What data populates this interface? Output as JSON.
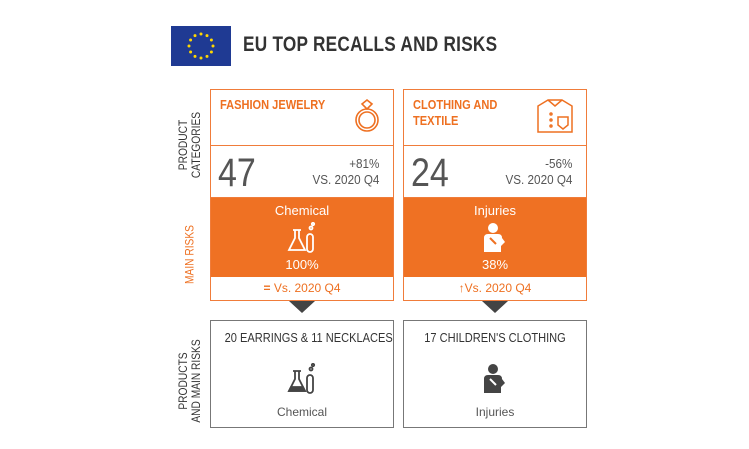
{
  "header": {
    "title": "EU TOP RECALLS AND RISKS",
    "flag_icon": "eu-flag"
  },
  "side_labels": {
    "product_categories": [
      "PRODUCT",
      "CATEGORIES"
    ],
    "main_risks": "MAIN RISKS",
    "products_main_risks": [
      "PRODUCTS",
      "AND MAIN RISKS"
    ]
  },
  "colors": {
    "accent": "#ef7123",
    "dark": "#444444"
  },
  "cards": [
    {
      "category": "FASHION JEWELRY",
      "icon": "ring-icon",
      "count": "47",
      "change": "+81%",
      "change_ref": "VS. 2020 Q4",
      "risk": "Chemical",
      "risk_icon": "chemical-flask-icon",
      "risk_pct": "100%",
      "trend_icon": "equal-icon",
      "trend_symbol": "=",
      "trend_text": "Vs. 2020 Q4",
      "products": "20 EARRINGS & 11 NECKLACES",
      "product_risk": "Chemical"
    },
    {
      "category": "CLOTHING AND TEXTILE",
      "icon": "shirt-icon",
      "count": "24",
      "change": "-56%",
      "change_ref": "VS. 2020 Q4",
      "risk": "Injuries",
      "risk_icon": "injured-person-icon",
      "risk_pct": "38%",
      "trend_icon": "arrow-up-icon",
      "trend_symbol": "↑",
      "trend_text": "Vs. 2020 Q4",
      "products": "17 CHILDREN'S CLOTHING",
      "product_risk": "Injuries"
    }
  ]
}
